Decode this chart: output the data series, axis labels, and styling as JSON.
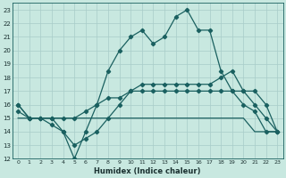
{
  "xlabel": "Humidex (Indice chaleur)",
  "background_color": "#c8e8e0",
  "grid_color": "#a8ccc8",
  "line_color": "#1a6060",
  "xlim": [
    -0.5,
    23.5
  ],
  "ylim": [
    12,
    23.5
  ],
  "xticks": [
    0,
    1,
    2,
    3,
    4,
    5,
    6,
    7,
    8,
    9,
    10,
    11,
    12,
    13,
    14,
    15,
    16,
    17,
    18,
    19,
    20,
    21,
    22,
    23
  ],
  "yticks": [
    12,
    13,
    14,
    15,
    16,
    17,
    18,
    19,
    20,
    21,
    22,
    23
  ],
  "line1_x": [
    0,
    1,
    2,
    3,
    4,
    5,
    6,
    7,
    8,
    9,
    10,
    11,
    12,
    13,
    14,
    15,
    16,
    17,
    18,
    19,
    20,
    21,
    22,
    23
  ],
  "line1_y": [
    16,
    15,
    15,
    15,
    14,
    12,
    14,
    16,
    18.5,
    20,
    21,
    21.5,
    20.5,
    21,
    22.5,
    23,
    21.5,
    21.5,
    18.5,
    17,
    16,
    15.5,
    14,
    14
  ],
  "line2_x": [
    0,
    1,
    2,
    3,
    4,
    5,
    6,
    7,
    8,
    9,
    10,
    11,
    12,
    13,
    14,
    15,
    16,
    17,
    18,
    19,
    20,
    21,
    22,
    23
  ],
  "line2_y": [
    15.5,
    15,
    15,
    15,
    15,
    15,
    15.5,
    16,
    16.5,
    16.5,
    17,
    17,
    17,
    17,
    17,
    17,
    17,
    17,
    17,
    17,
    17,
    17,
    16,
    14
  ],
  "line3_x": [
    0,
    1,
    2,
    3,
    4,
    5,
    6,
    7,
    8,
    9,
    10,
    11,
    12,
    13,
    14,
    15,
    16,
    17,
    18,
    19,
    20,
    21,
    22,
    23
  ],
  "line3_y": [
    15,
    15,
    15,
    15,
    15,
    15,
    15,
    15,
    15,
    15,
    15,
    15,
    15,
    15,
    15,
    15,
    15,
    15,
    15,
    15,
    15,
    14,
    14,
    14
  ],
  "line4_x": [
    0,
    1,
    2,
    3,
    4,
    5,
    6,
    7,
    8,
    9,
    10,
    11,
    12,
    13,
    14,
    15,
    16,
    17,
    18,
    19,
    20,
    21,
    22,
    23
  ],
  "line4_y": [
    16,
    15,
    15,
    14.5,
    14,
    13,
    13.5,
    14,
    15,
    16,
    17,
    17.5,
    17.5,
    17.5,
    17.5,
    17.5,
    17.5,
    17.5,
    18,
    18.5,
    17,
    16,
    15,
    14
  ]
}
